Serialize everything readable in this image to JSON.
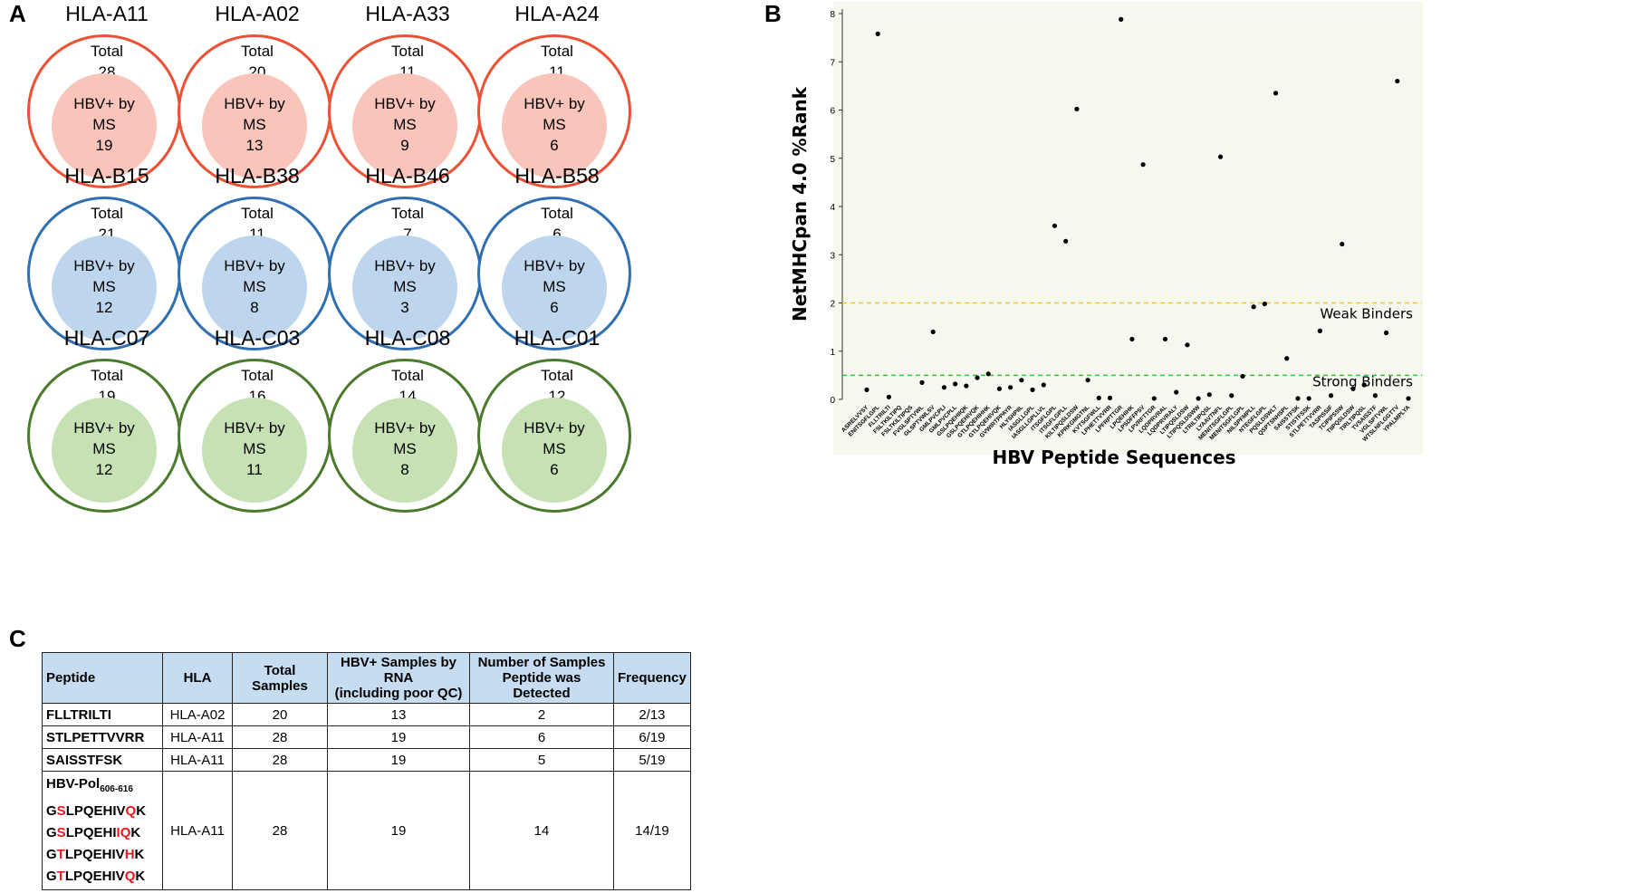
{
  "panel_labels": {
    "a": "A",
    "b": "B",
    "c": "C"
  },
  "venn": {
    "total_label": "Total",
    "inner_label_line1": "HBV+ by",
    "inner_label_line2": "MS",
    "rows": [
      {
        "outer_color": "#ec5035",
        "inner_color": "#f9c4b9",
        "items": [
          {
            "hla": "HLA-A11",
            "total": "28",
            "hbv": "19"
          },
          {
            "hla": "HLA-A02",
            "total": "20",
            "hbv": "13"
          },
          {
            "hla": "HLA-A33",
            "total": "11",
            "hbv": "9"
          },
          {
            "hla": "HLA-A24",
            "total": "11",
            "hbv": "6"
          }
        ]
      },
      {
        "outer_color": "#2f6fb2",
        "inner_color": "#bdd6ee",
        "items": [
          {
            "hla": "HLA-B15",
            "total": "21",
            "hbv": "12"
          },
          {
            "hla": "HLA-B38",
            "total": "11",
            "hbv": "8"
          },
          {
            "hla": "HLA-B46",
            "total": "7",
            "hbv": "3"
          },
          {
            "hla": "HLA-B58",
            "total": "6",
            "hbv": "6"
          }
        ]
      },
      {
        "outer_color": "#4a7a2c",
        "inner_color": "#c6e1b3",
        "items": [
          {
            "hla": "HLA-C07",
            "total": "19",
            "hbv": "12"
          },
          {
            "hla": "HLA-C03",
            "total": "16",
            "hbv": "11"
          },
          {
            "hla": "HLA-C08",
            "total": "14",
            "hbv": "8"
          },
          {
            "hla": "HLA-C01",
            "total": "12",
            "hbv": "6"
          }
        ]
      }
    ]
  },
  "chart_data": {
    "type": "scatter",
    "title": "",
    "xlabel": "HBV Peptide Sequences",
    "ylabel": "NetMHCpan 4.0 %Rank",
    "ylim": [
      0,
      8
    ],
    "yticks": [
      "0",
      "1",
      "2",
      "3",
      "4",
      "5",
      "6",
      "7",
      "8"
    ],
    "background": "#f6f7ef",
    "weak_threshold": {
      "value": 2,
      "label": "Weak Binders",
      "color": "#f1c232"
    },
    "strong_threshold": {
      "value": 0.5,
      "label": "Strong Binders",
      "color": "#2ecc2e"
    },
    "x_labels": [
      "ASRELVVSY",
      "ENITSGFLGPL",
      "FLLTRILTI",
      "FSLTKILTIPQ",
      "FSLTKILTIPQS",
      "FVGLSPTVWL",
      "GLSPTVWLSV",
      "GMLPVCPLI",
      "GMLPVCPLL",
      "GSLPQEHIIQK",
      "GSLPQEHIVQK",
      "GTLPQEHIHHK",
      "GTLPQEHIVQK",
      "GVWIRTPPAYR",
      "HLYSHPIIL",
      "IASGLLGPL",
      "IASGLLGPLLVL",
      "ITSGFLGPL",
      "ITSGFLGPLL",
      "KILTIPQSLDSW",
      "KPRKGMGTNL",
      "KVTSGFWLL",
      "LPHETTVVRR",
      "LPFRPTTGR",
      "LPQEHIHK",
      "LPSDFFPSV",
      "LPVRFTTGR",
      "LQDPRVRAL",
      "LQDPRVRALY",
      "LTIPQSLDSW",
      "LTIPQSLDSWW",
      "LTRILTIPQSL",
      "LYAAVTNFL",
      "MENITSGFLGPL",
      "MENITSGFLGPL",
      "NILSPFMPLL",
      "NTEGFLGPL",
      "PQSLDSWLT",
      "QSPTSNHSPL",
      "SAISSTFSK",
      "STISTFSSK",
      "STLPETTVVRR",
      "TASPISSIF",
      "TCIPIPSSW",
      "TIIPQSLDSW",
      "TIRLTIPQSL",
      "TVSAISSTF",
      "VGLSPTVWL",
      "WTSLNFLGGTTV",
      "YPALMPLYA"
    ],
    "y": [
      0.2,
      7.58,
      0.05,
      null,
      null,
      0.35,
      1.4,
      0.25,
      0.32,
      0.28,
      0.45,
      0.53,
      0.22,
      0.25,
      0.4,
      0.2,
      0.3,
      3.6,
      3.28,
      6.02,
      0.4,
      0.03,
      0.03,
      7.88,
      1.25,
      4.87,
      0.02,
      1.25,
      0.15,
      1.13,
      0.02,
      0.1,
      5.03,
      0.08,
      0.48,
      1.92,
      1.98,
      6.35,
      0.85,
      0.02,
      0.02,
      1.42,
      0.08,
      3.22,
      0.22,
      0.3,
      0.08,
      1.38,
      6.6,
      0.02
    ]
  },
  "table": {
    "headers": [
      "Peptide",
      "HLA",
      "Total Samples",
      "HBV+ Samples by RNA (including poor QC)",
      "Number of Samples Peptide was Detected",
      "Frequency"
    ],
    "header_lines": {
      "hbv_l1": "HBV+ Samples by RNA",
      "hbv_l2": "(including poor QC)",
      "num_l1": "Number of Samples",
      "num_l2": "Peptide was Detected"
    },
    "rows": [
      {
        "peptide": "FLLTRILTI",
        "hla": "HLA-A02",
        "total": "20",
        "hbv": "13",
        "detected": "2",
        "freq": "2/13"
      },
      {
        "peptide": "STLPETTVVRR",
        "hla": "HLA-A11",
        "total": "28",
        "hbv": "19",
        "detected": "6",
        "freq": "6/19"
      },
      {
        "peptide": "SAISSTFSK",
        "hla": "HLA-A11",
        "total": "28",
        "hbv": "19",
        "detected": "5",
        "freq": "5/19"
      }
    ],
    "pol_row": {
      "name": "HBV-Pol",
      "subscript": "606-616",
      "variants": [
        [
          "G",
          "S",
          "LPQEHIV",
          "Q",
          "K"
        ],
        [
          "G",
          "S",
          "LPQEHI",
          "IQ",
          "K"
        ],
        [
          "G",
          "T",
          "LPQEHIV",
          "H",
          "K"
        ],
        [
          "G",
          "T",
          "LPQEHIV",
          "Q",
          "K"
        ]
      ],
      "hla": "HLA-A11",
      "total": "28",
      "hbv": "19",
      "detected": "14",
      "freq": "14/19"
    }
  }
}
